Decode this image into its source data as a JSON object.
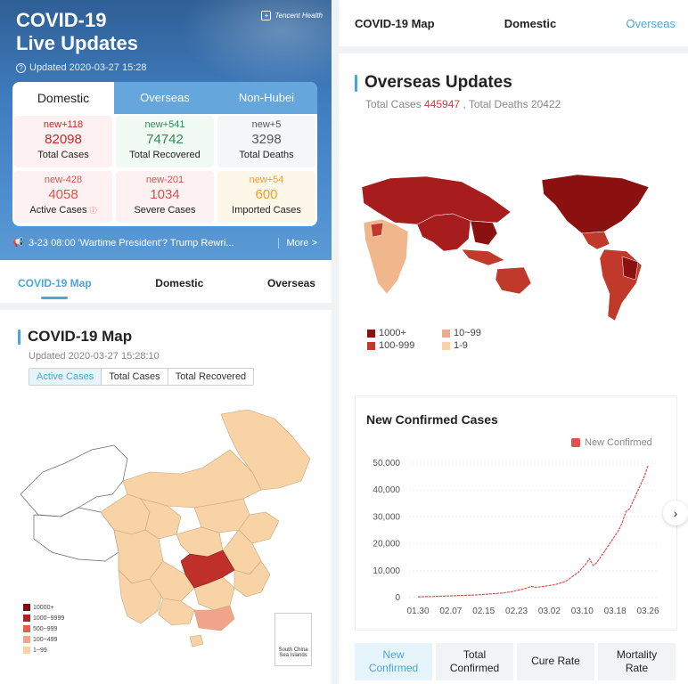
{
  "left": {
    "hero": {
      "title_line1": "COVID-19",
      "title_line2": "Live Updates",
      "brand": "Tencent Health",
      "updated": "Updated 2020-03-27 15:28"
    },
    "stats_tabs": [
      "Domestic",
      "Overseas",
      "Non-Hubei"
    ],
    "stats": [
      {
        "new": "new+118",
        "value": "82098",
        "label": "Total Cases",
        "color": "#c62828"
      },
      {
        "new": "new+541",
        "value": "74742",
        "label": "Total Recovered",
        "color": "#2e8b57"
      },
      {
        "new": "new+5",
        "value": "3298",
        "label": "Total Deaths",
        "color": "#555555"
      },
      {
        "new": "new-428",
        "value": "4058",
        "label": "Active Cases",
        "color": "#d9534f"
      },
      {
        "new": "new-201",
        "value": "1034",
        "label": "Severe Cases",
        "color": "#d9534f"
      },
      {
        "new": "new+54",
        "value": "600",
        "label": "Imported Cases",
        "color": "#f0a030"
      }
    ],
    "notice": {
      "text": "3-23 08:00 'Wartime President'? Trump Rewri...",
      "more": "More >"
    },
    "nav": [
      "COVID-19 Map",
      "Domestic",
      "Overseas"
    ],
    "map_section": {
      "title": "COVID-19 Map",
      "updated": "Updated 2020-03-27 15:28:10",
      "filters": [
        "Active Cases",
        "Total Cases",
        "Total Recovered"
      ],
      "legend": [
        {
          "label": "10000+",
          "color": "#7b0e0e"
        },
        {
          "label": "1000~9999",
          "color": "#b22222"
        },
        {
          "label": "500~999",
          "color": "#d9634f"
        },
        {
          "label": "100~499",
          "color": "#f0a58a"
        },
        {
          "label": "1~99",
          "color": "#f7d3a6"
        }
      ],
      "inset_label": "South China Sea Islands"
    }
  },
  "right": {
    "nav": [
      "COVID-19 Map",
      "Domestic",
      "Overseas"
    ],
    "title": "Overseas Updates",
    "totals": {
      "prefix": "Total Cases ",
      "cases": "445947",
      "middle": " , Total Deaths ",
      "deaths": "20422"
    },
    "legend": [
      {
        "label": "1000+",
        "color": "#8b1010"
      },
      {
        "label": "10~99",
        "color": "#f2a88c"
      },
      {
        "label": "100-999",
        "color": "#c0392b"
      },
      {
        "label": "1-9",
        "color": "#f7d3a6"
      }
    ],
    "chart_title": "New Confirmed Cases",
    "bottom_tabs": [
      {
        "line1": "New",
        "line2": "Confirmed"
      },
      {
        "line1": "Total",
        "line2": "Confirmed"
      },
      {
        "line1": "Cure Rate",
        "line2": ""
      },
      {
        "line1": "Mortality",
        "line2": "Rate"
      }
    ],
    "arrow": "›"
  },
  "chart_data": {
    "type": "line",
    "title": "New Confirmed Cases",
    "series": [
      {
        "name": "New Confirmed",
        "color": "#e05050",
        "values": [
          300,
          320,
          350,
          380,
          400,
          450,
          500,
          550,
          600,
          650,
          700,
          750,
          800,
          850,
          900,
          950,
          1000,
          1100,
          1200,
          1300,
          1400,
          1500,
          1600,
          1700,
          1900,
          2100,
          2300,
          2600,
          2900,
          3200,
          3600,
          4200,
          3800,
          3900,
          4100,
          4300,
          4500,
          4700,
          5000,
          5400,
          5800,
          6500,
          7500,
          8500,
          9500,
          11000,
          12500,
          14500,
          12000,
          13000,
          15000,
          17000,
          19000,
          21000,
          23000,
          25000,
          28000,
          32000,
          33000,
          36000,
          39000,
          42000,
          45000,
          49000
        ]
      }
    ],
    "x_ticks": [
      "01.30",
      "02.07",
      "02.15",
      "02.23",
      "03.02",
      "03.10",
      "03.18",
      "03.26"
    ],
    "y_ticks": [
      "0",
      "10,000",
      "20,000",
      "30,000",
      "40,000",
      "50,000"
    ],
    "ylim": [
      0,
      50000
    ]
  }
}
